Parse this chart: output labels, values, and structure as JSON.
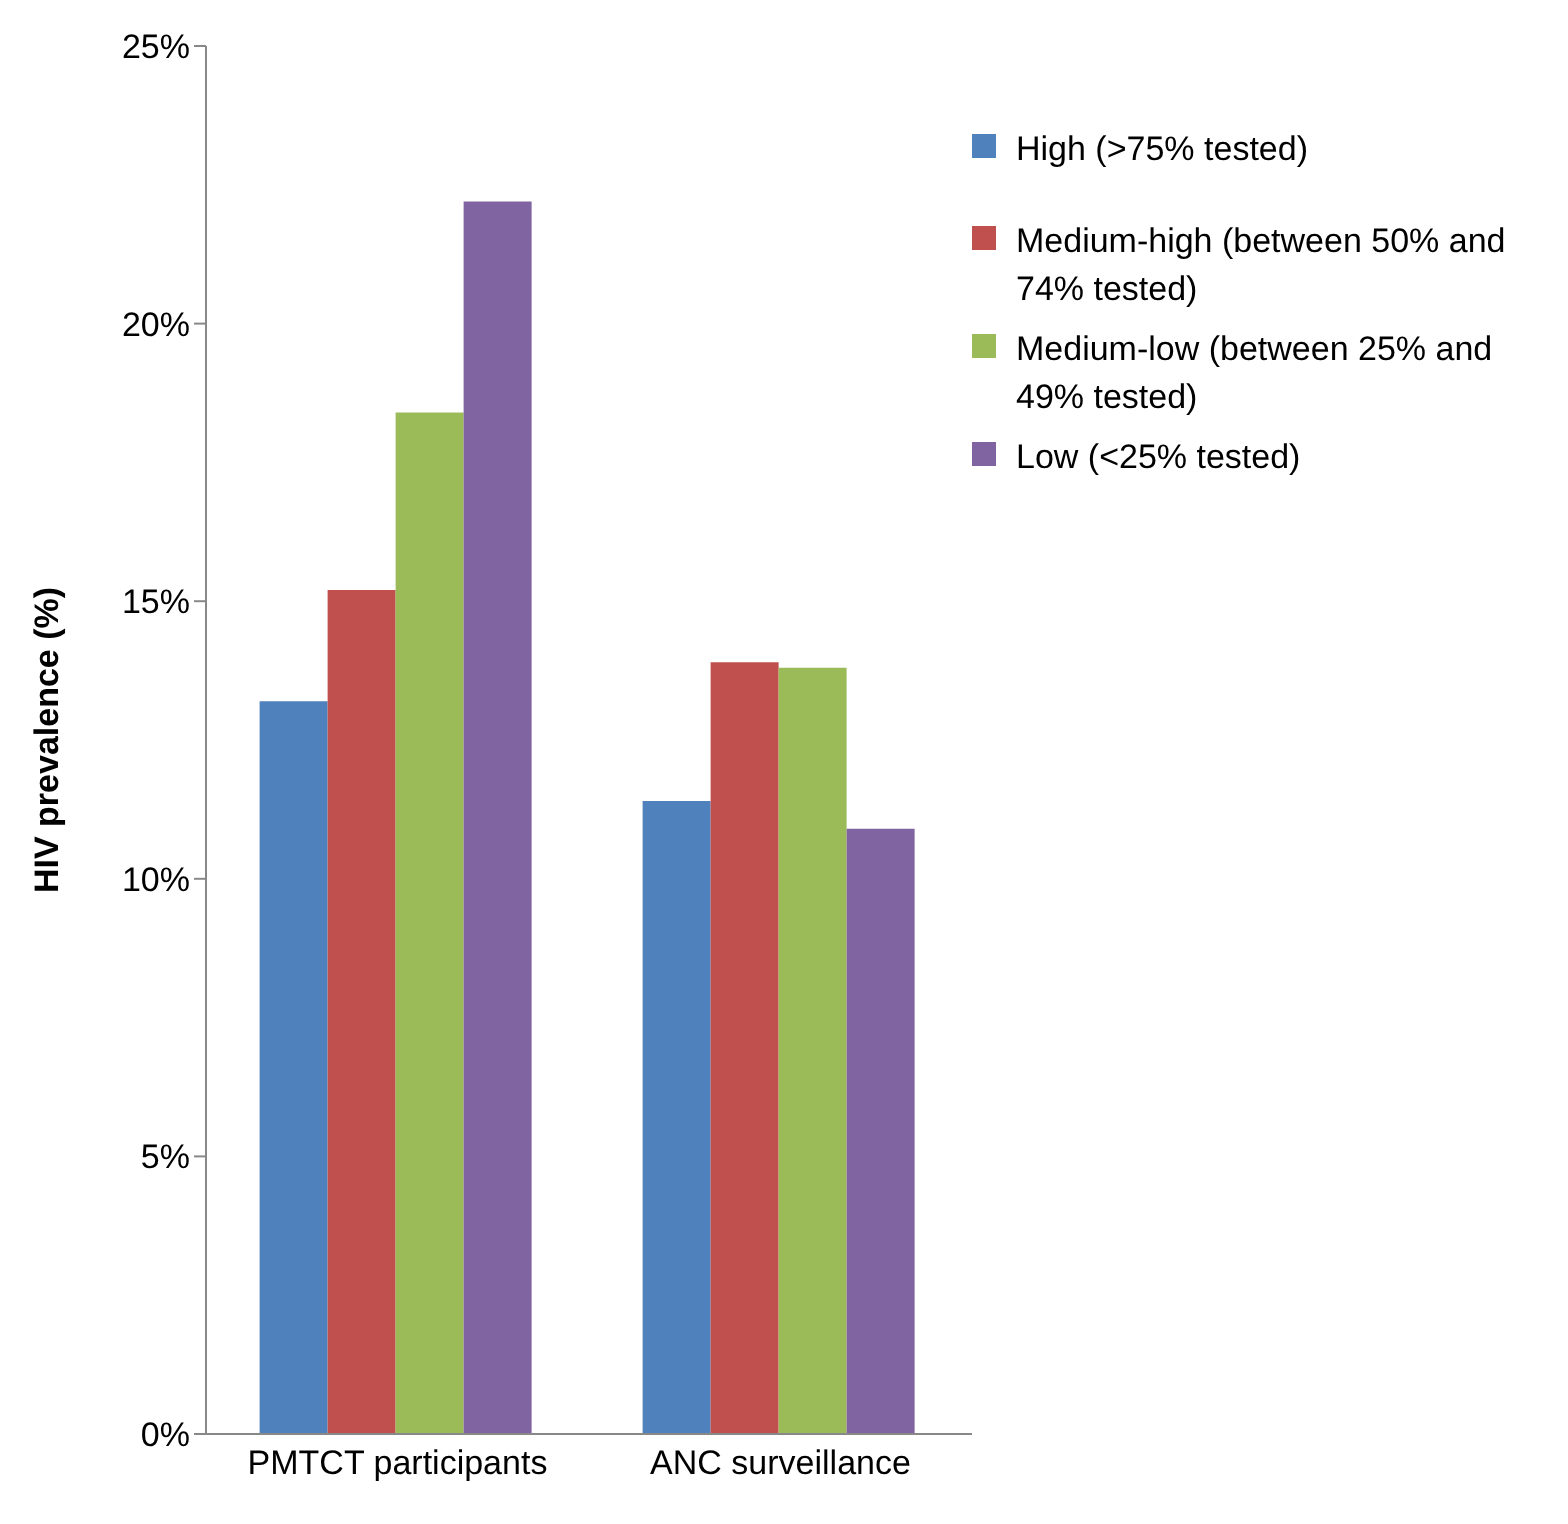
{
  "chart_data": {
    "type": "bar",
    "ylabel": "HIV prevalence (%)",
    "categories": [
      "PMTCT participants",
      "ANC surveillance"
    ],
    "series": [
      {
        "name": "High (>75% tested)",
        "color": "#4f81bd",
        "values": [
          13.2,
          11.4
        ]
      },
      {
        "name": "Medium-high (between 50% and 74% tested)",
        "color": "#c0504d",
        "values": [
          15.2,
          13.9
        ]
      },
      {
        "name": "Medium-low (between 25% and 49% tested)",
        "color": "#9bbb59",
        "values": [
          18.4,
          13.8
        ]
      },
      {
        "name": "Low (<25% tested)",
        "color": "#8064a2",
        "values": [
          22.2,
          10.9
        ]
      }
    ],
    "ylim": [
      0,
      25
    ],
    "yticks": [
      {
        "value": 0,
        "label": "0%"
      },
      {
        "value": 5,
        "label": "5%"
      },
      {
        "value": 10,
        "label": "10%"
      },
      {
        "value": 15,
        "label": "15%"
      },
      {
        "value": 20,
        "label": "20%"
      },
      {
        "value": 25,
        "label": "25%"
      }
    ],
    "grid": false,
    "legend": "top right"
  }
}
